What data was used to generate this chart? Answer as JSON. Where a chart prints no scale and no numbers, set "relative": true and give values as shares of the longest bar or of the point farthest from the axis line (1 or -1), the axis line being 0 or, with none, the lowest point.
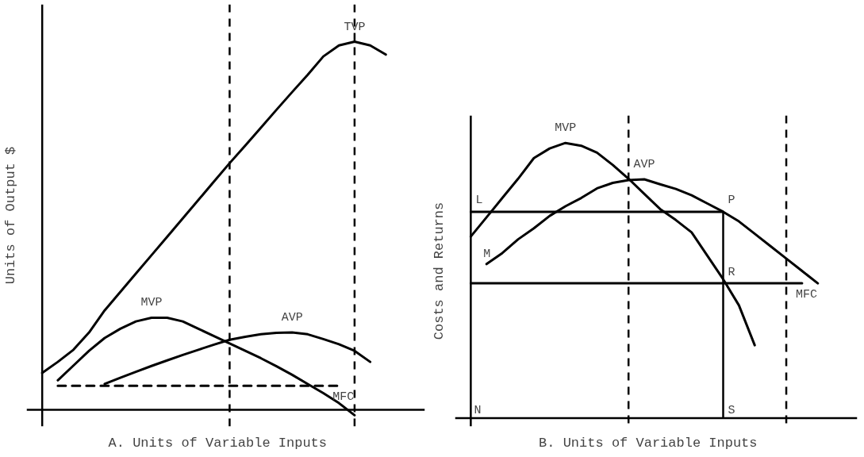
{
  "chart_data": [
    {
      "type": "line",
      "relative": true,
      "xlabel": "A.   Units of Variable Inputs",
      "ylabel": "Units of Output $",
      "tick_labels": false,
      "categories": [
        null,
        null,
        null,
        null,
        null,
        null,
        null,
        null,
        null,
        null,
        null,
        null,
        null,
        null,
        null,
        null,
        null,
        null,
        null,
        null,
        null,
        null,
        null
      ],
      "series": [
        {
          "name": "TVP",
          "color": "#000000",
          "values": [
            0.1,
            0.13,
            0.163,
            0.21,
            0.27,
            0.32,
            0.37,
            0.42,
            0.47,
            0.52,
            0.57,
            0.62,
            0.67,
            0.718,
            0.766,
            0.815,
            0.863,
            0.91,
            0.96,
            0.99,
            1.0,
            0.99,
            0.965
          ]
        },
        {
          "name": "MVP",
          "color": "#000000",
          "values": [
            null,
            0.08,
            0.12,
            0.16,
            0.195,
            0.22,
            0.24,
            0.25,
            0.25,
            0.24,
            0.22,
            0.2,
            0.18,
            0.16,
            0.14,
            0.118,
            0.095,
            0.07,
            0.045,
            0.018,
            -0.015,
            null,
            null
          ]
        },
        {
          "name": "AVP",
          "color": "#000000",
          "values": [
            null,
            null,
            null,
            null,
            0.07,
            0.087,
            0.103,
            0.119,
            0.134,
            0.149,
            0.163,
            0.177,
            0.19,
            0.198,
            0.205,
            0.209,
            0.21,
            0.205,
            0.192,
            0.178,
            0.16,
            0.13,
            null
          ]
        },
        {
          "name": "MFC",
          "color": "#000000",
          "line_style": "dashed",
          "values": [
            null,
            0.065,
            0.065,
            0.065,
            0.065,
            0.065,
            0.065,
            0.065,
            0.065,
            0.065,
            0.065,
            0.065,
            0.065,
            0.065,
            0.065,
            0.065,
            0.065,
            0.065,
            0.065,
            0.065,
            null,
            null,
            null
          ]
        }
      ]
    },
    {
      "type": "line",
      "relative": true,
      "xlabel": "B.   Units of Variable Inputs",
      "ylabel": "Costs and Returns",
      "tick_labels": false,
      "categories": [
        null,
        null,
        null,
        null,
        null,
        null,
        null,
        null,
        null,
        null,
        null,
        null,
        null,
        null,
        null,
        null,
        null,
        null,
        null,
        null,
        null,
        null,
        null
      ],
      "series": [
        {
          "name": "MVP",
          "color": "#000000",
          "values": [
            0.66,
            0.73,
            0.8,
            0.87,
            0.945,
            0.98,
            1.0,
            0.99,
            0.965,
            0.92,
            0.87,
            0.815,
            0.76,
            0.72,
            0.675,
            0.59,
            0.505,
            0.41,
            0.265,
            null,
            null,
            null,
            null
          ]
        },
        {
          "name": "AVP",
          "color": "#000000",
          "values": [
            null,
            0.56,
            0.6,
            0.65,
            0.69,
            0.735,
            0.77,
            0.8,
            0.835,
            0.855,
            0.865,
            0.868,
            0.85,
            0.833,
            0.81,
            0.78,
            0.75,
            0.715,
            0.67,
            0.625,
            0.58,
            0.535,
            0.49
          ]
        },
        {
          "name": "MFC",
          "color": "#000000",
          "values": [
            0.49,
            0.49,
            0.49,
            0.49,
            0.49,
            0.49,
            0.49,
            0.49,
            0.49,
            0.49,
            0.49,
            0.49,
            0.49,
            0.49,
            0.49,
            0.49,
            0.49,
            0.49,
            0.49,
            0.49,
            0.49,
            0.49,
            null
          ]
        },
        {
          "color": "#000000",
          "values": [
            0.75,
            0.75,
            0.75,
            0.75,
            0.75,
            0.75,
            0.75,
            0.75,
            0.75,
            0.75,
            0.75,
            0.75,
            0.75,
            0.75,
            0.75,
            0.75,
            0.75,
            null,
            null,
            null,
            null,
            null,
            null
          ]
        }
      ],
      "annotations": [
        "L",
        "M",
        "N",
        "P",
        "R",
        "S"
      ]
    }
  ]
}
